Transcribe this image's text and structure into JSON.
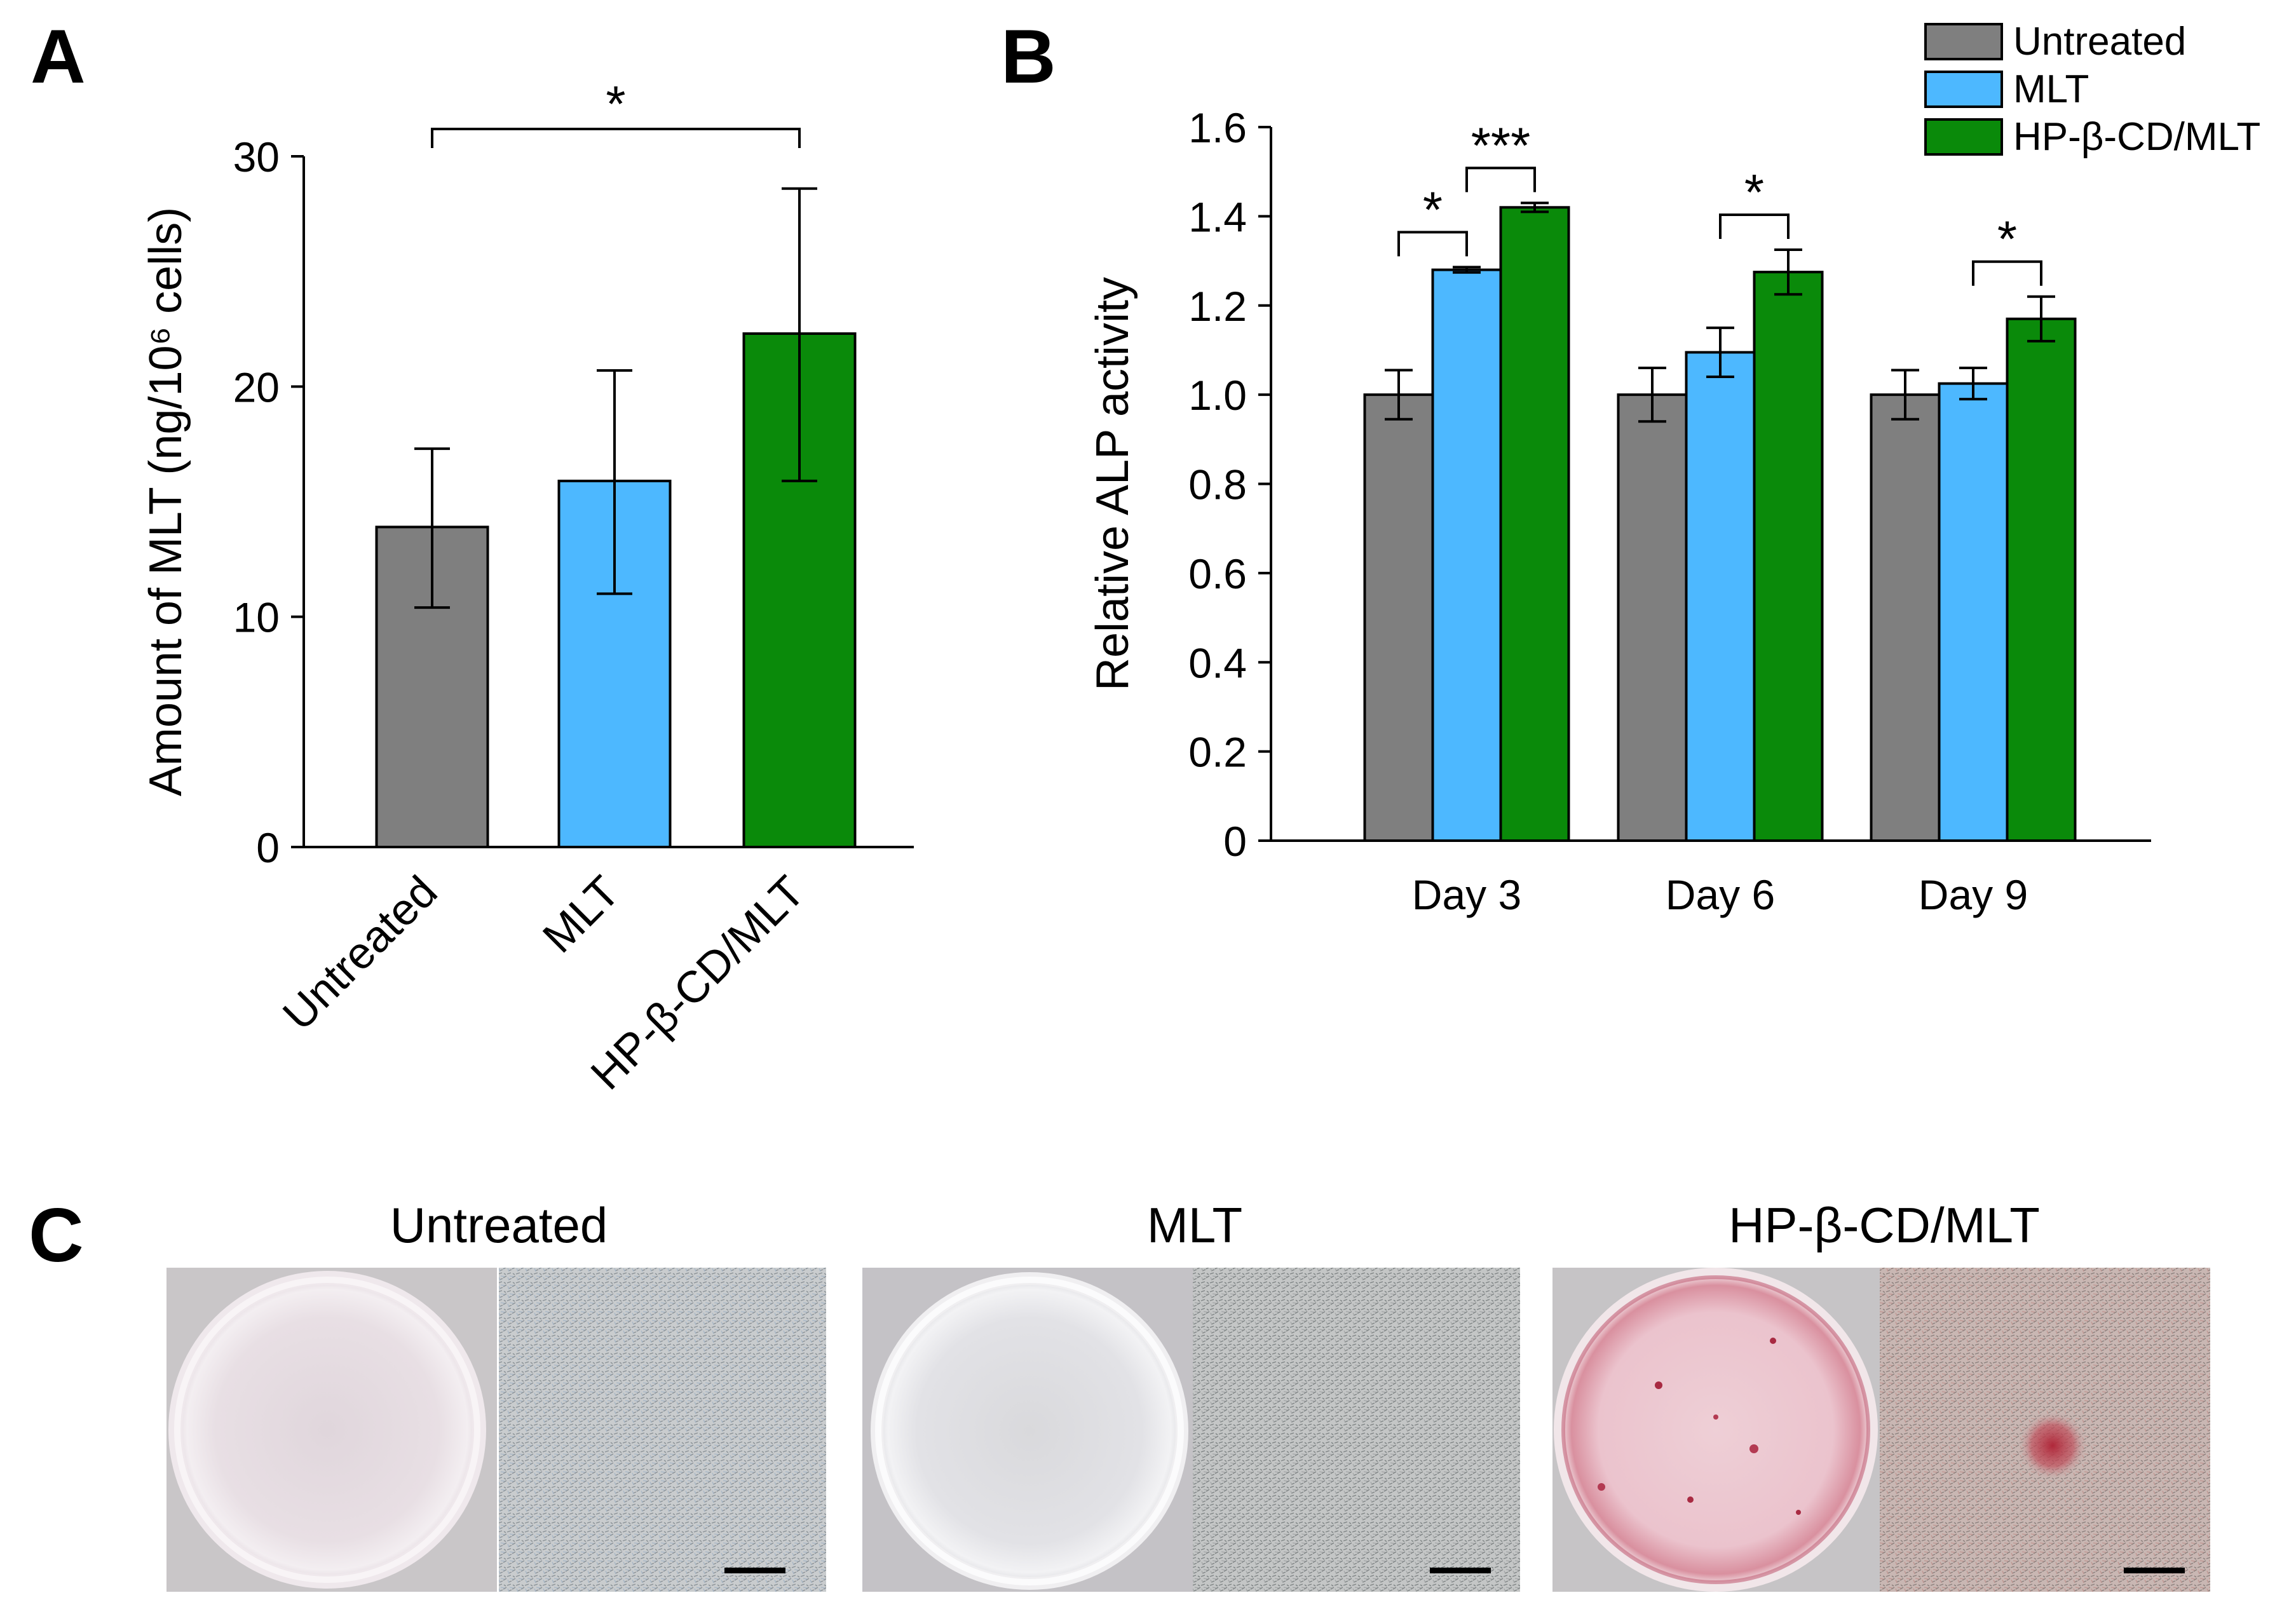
{
  "panel_labels": {
    "a": "A",
    "b": "B",
    "c": "C"
  },
  "colors": {
    "untreated": "#7f7f7f",
    "mlt": "#4db8ff",
    "hp": "#0a8a0a",
    "axis": "#000000"
  },
  "chart_data": [
    {
      "id": "A",
      "type": "bar",
      "categories": [
        "Untreated",
        "MLT",
        "HP-β-CD/MLT"
      ],
      "values": [
        13.9,
        15.9,
        22.3
      ],
      "errors_upper": [
        17.3,
        20.7,
        28.6
      ],
      "errors_lower": [
        10.4,
        11.0,
        15.9
      ],
      "ylabel": "Amount of MLT (ng/10⁶ cells)",
      "ylim": [
        0,
        30
      ],
      "yticks": [
        "0",
        "10",
        "20",
        "30"
      ],
      "significance": [
        {
          "from": 0,
          "to": 2,
          "label": "*"
        }
      ]
    },
    {
      "id": "B",
      "type": "bar",
      "categories": [
        "Day 3",
        "Day 6",
        "Day 9"
      ],
      "series": [
        {
          "name": "Untreated",
          "values": [
            1.0,
            1.0,
            1.0
          ],
          "err": [
            0.055,
            0.06,
            0.055
          ]
        },
        {
          "name": "MLT",
          "values": [
            1.28,
            1.095,
            1.025
          ],
          "err": [
            0.006,
            0.055,
            0.035
          ]
        },
        {
          "name": "HP-β-CD/MLT",
          "values": [
            1.42,
            1.275,
            1.17
          ],
          "err": [
            0.01,
            0.05,
            0.05
          ]
        }
      ],
      "ylabel": "Relative ALP activity",
      "ylim": [
        0,
        1.6
      ],
      "yticks": [
        "0",
        "0.2",
        "0.4",
        "0.6",
        "0.8",
        "1.0",
        "1.2",
        "1.4",
        "1.6"
      ],
      "significance": [
        {
          "group": 0,
          "from": 0,
          "to": 1,
          "label": "*"
        },
        {
          "group": 0,
          "from": 1,
          "to": 2,
          "label": "***"
        },
        {
          "group": 1,
          "from": 1,
          "to": 2,
          "label": "*"
        },
        {
          "group": 2,
          "from": 1,
          "to": 2,
          "label": "*"
        }
      ],
      "legend": [
        "Untreated",
        "MLT",
        "HP-β-CD/MLT"
      ]
    }
  ],
  "panel_c": {
    "titles": [
      "Untreated",
      "MLT",
      "HP-β-CD/MLT"
    ]
  }
}
